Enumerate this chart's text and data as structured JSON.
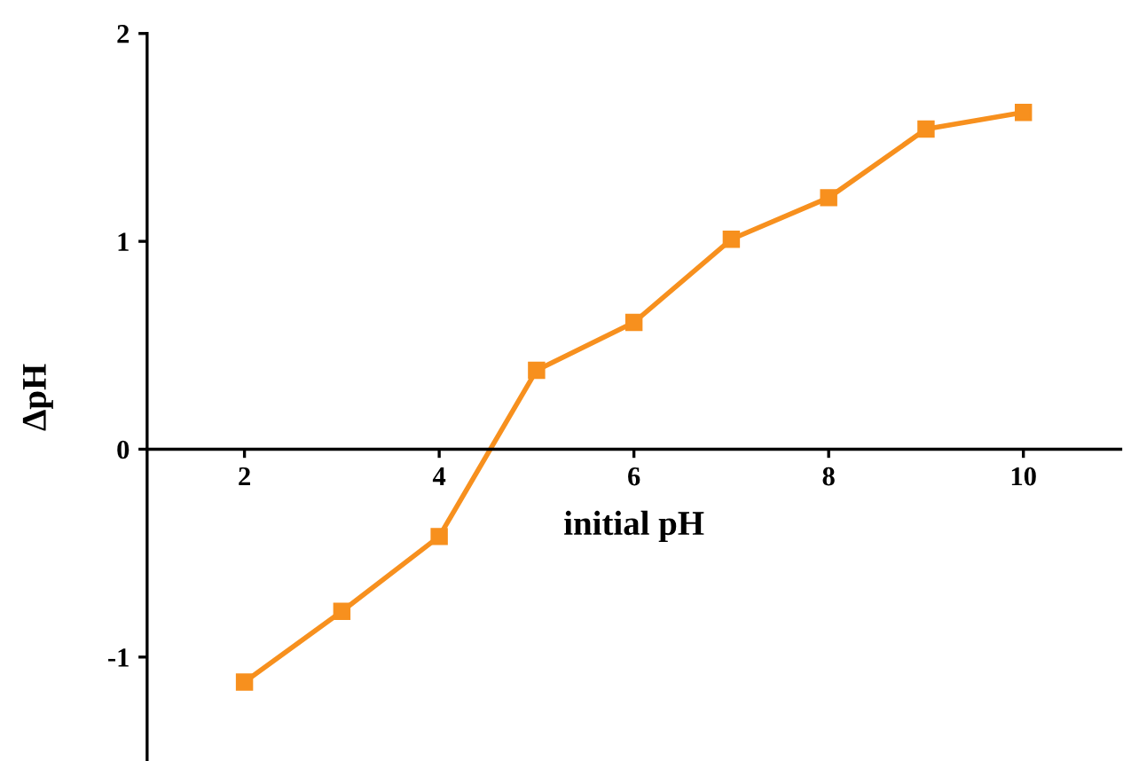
{
  "chart_data": {
    "type": "line",
    "xlabel": "initial pH",
    "ylabel": "ΔpH",
    "x": [
      2,
      3,
      4,
      5,
      6,
      7,
      8,
      9,
      10
    ],
    "series": [
      {
        "color": "#f7901e",
        "values": [
          -1.12,
          -0.78,
          -0.42,
          0.38,
          0.61,
          1.01,
          1.21,
          1.54,
          1.62
        ]
      }
    ],
    "xlim": [
      1,
      11
    ],
    "ylim": [
      -1.5,
      2
    ],
    "xticks": [
      2,
      4,
      6,
      8,
      10
    ],
    "yticks": [
      -1,
      0,
      1,
      2
    ],
    "marker": "square",
    "line_style": "solid",
    "grid": false,
    "legend": false
  }
}
